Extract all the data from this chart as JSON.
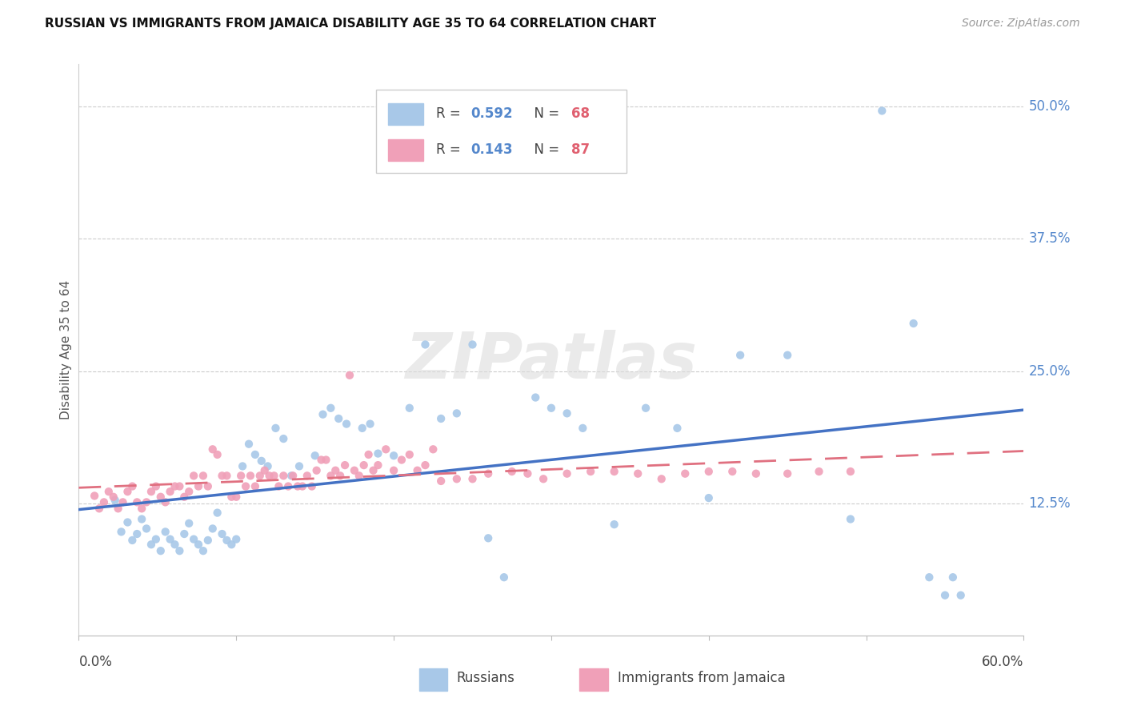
{
  "title": "RUSSIAN VS IMMIGRANTS FROM JAMAICA DISABILITY AGE 35 TO 64 CORRELATION CHART",
  "source": "Source: ZipAtlas.com",
  "ylabel": "Disability Age 35 to 64",
  "right_yticks": [
    "50.0%",
    "37.5%",
    "25.0%",
    "12.5%"
  ],
  "right_ytick_vals": [
    0.5,
    0.375,
    0.25,
    0.125
  ],
  "xmin": 0.0,
  "xmax": 0.6,
  "ymin": 0.0,
  "ymax": 0.54,
  "blue_color": "#a8c8e8",
  "pink_color": "#f0a0b8",
  "line_blue": "#4472c4",
  "line_pink": "#e07080",
  "watermark": "ZIPatlas",
  "rx": [
    0.023,
    0.027,
    0.031,
    0.034,
    0.037,
    0.04,
    0.043,
    0.046,
    0.049,
    0.052,
    0.055,
    0.058,
    0.061,
    0.064,
    0.067,
    0.07,
    0.073,
    0.076,
    0.079,
    0.082,
    0.085,
    0.088,
    0.091,
    0.094,
    0.097,
    0.1,
    0.104,
    0.108,
    0.112,
    0.116,
    0.12,
    0.125,
    0.13,
    0.135,
    0.14,
    0.15,
    0.155,
    0.16,
    0.165,
    0.17,
    0.18,
    0.185,
    0.19,
    0.2,
    0.21,
    0.22,
    0.23,
    0.24,
    0.25,
    0.26,
    0.27,
    0.29,
    0.3,
    0.31,
    0.32,
    0.34,
    0.36,
    0.38,
    0.4,
    0.42,
    0.45,
    0.49,
    0.51,
    0.53,
    0.54,
    0.55,
    0.555,
    0.56
  ],
  "ry": [
    0.128,
    0.098,
    0.107,
    0.09,
    0.096,
    0.11,
    0.101,
    0.086,
    0.091,
    0.08,
    0.098,
    0.091,
    0.086,
    0.08,
    0.096,
    0.106,
    0.091,
    0.086,
    0.08,
    0.09,
    0.101,
    0.116,
    0.096,
    0.09,
    0.086,
    0.091,
    0.16,
    0.181,
    0.171,
    0.165,
    0.16,
    0.196,
    0.186,
    0.151,
    0.16,
    0.17,
    0.209,
    0.215,
    0.205,
    0.2,
    0.196,
    0.2,
    0.172,
    0.17,
    0.215,
    0.275,
    0.205,
    0.21,
    0.275,
    0.092,
    0.055,
    0.225,
    0.215,
    0.21,
    0.196,
    0.105,
    0.215,
    0.196,
    0.13,
    0.265,
    0.265,
    0.11,
    0.496,
    0.295,
    0.055,
    0.038,
    0.055,
    0.038
  ],
  "jx": [
    0.01,
    0.013,
    0.016,
    0.019,
    0.022,
    0.025,
    0.028,
    0.031,
    0.034,
    0.037,
    0.04,
    0.043,
    0.046,
    0.049,
    0.052,
    0.055,
    0.058,
    0.061,
    0.064,
    0.067,
    0.07,
    0.073,
    0.076,
    0.079,
    0.082,
    0.085,
    0.088,
    0.091,
    0.094,
    0.097,
    0.1,
    0.103,
    0.106,
    0.109,
    0.112,
    0.115,
    0.118,
    0.121,
    0.124,
    0.127,
    0.13,
    0.133,
    0.136,
    0.139,
    0.142,
    0.145,
    0.148,
    0.151,
    0.154,
    0.157,
    0.16,
    0.163,
    0.166,
    0.169,
    0.172,
    0.175,
    0.178,
    0.181,
    0.184,
    0.187,
    0.19,
    0.195,
    0.2,
    0.205,
    0.21,
    0.215,
    0.22,
    0.225,
    0.23,
    0.24,
    0.25,
    0.26,
    0.275,
    0.285,
    0.295,
    0.31,
    0.325,
    0.34,
    0.355,
    0.37,
    0.385,
    0.4,
    0.415,
    0.43,
    0.45,
    0.47,
    0.49
  ],
  "jy": [
    0.132,
    0.12,
    0.126,
    0.136,
    0.131,
    0.12,
    0.126,
    0.136,
    0.141,
    0.126,
    0.12,
    0.126,
    0.136,
    0.141,
    0.131,
    0.126,
    0.136,
    0.141,
    0.141,
    0.131,
    0.136,
    0.151,
    0.141,
    0.151,
    0.141,
    0.176,
    0.171,
    0.151,
    0.151,
    0.131,
    0.131,
    0.151,
    0.141,
    0.151,
    0.141,
    0.151,
    0.156,
    0.151,
    0.151,
    0.141,
    0.151,
    0.141,
    0.151,
    0.141,
    0.141,
    0.151,
    0.141,
    0.156,
    0.166,
    0.166,
    0.151,
    0.156,
    0.151,
    0.161,
    0.246,
    0.156,
    0.151,
    0.161,
    0.171,
    0.156,
    0.161,
    0.176,
    0.156,
    0.166,
    0.171,
    0.156,
    0.161,
    0.176,
    0.146,
    0.148,
    0.148,
    0.153,
    0.155,
    0.153,
    0.148,
    0.153,
    0.155,
    0.155,
    0.153,
    0.148,
    0.153,
    0.155,
    0.155,
    0.153,
    0.153,
    0.155,
    0.155
  ]
}
